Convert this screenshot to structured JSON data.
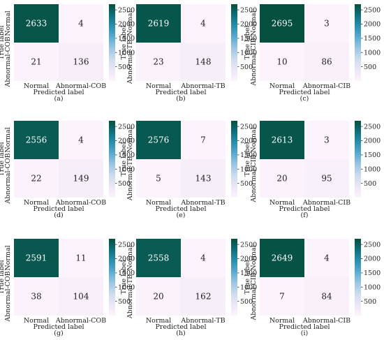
{
  "palette": {
    "dark": "#054f3e",
    "light": "#fcf3fc",
    "colorbar_stops": [
      "#fcf3fc",
      "#ede6f5",
      "#cddcef",
      "#9cc6e2",
      "#5ba9d2",
      "#2a8fae",
      "#0f6f7a",
      "#054f3e"
    ]
  },
  "colorbar": {
    "min": 0,
    "max": 2700,
    "ticks": [
      500,
      1000,
      1500,
      2000,
      2500
    ]
  },
  "chart_data": [
    {
      "type": "heatmap",
      "panel_label": "(a)",
      "xlabel": "Predicted label",
      "ylabel": "True label",
      "x_categories": [
        "Normal",
        "Abnormal-COB"
      ],
      "y_categories": [
        "Normal",
        "Abnormal-COB"
      ],
      "values": [
        [
          2633,
          4
        ],
        [
          21,
          136
        ]
      ]
    },
    {
      "type": "heatmap",
      "panel_label": "(b)",
      "xlabel": "Predicted label",
      "ylabel": "True label",
      "x_categories": [
        "Normal",
        "Abnormal-TB"
      ],
      "y_categories": [
        "Normal",
        "Abnormal-TB"
      ],
      "values": [
        [
          2619,
          4
        ],
        [
          23,
          148
        ]
      ]
    },
    {
      "type": "heatmap",
      "panel_label": "(c)",
      "xlabel": "Predicted label",
      "ylabel": "True label",
      "x_categories": [
        "Normal",
        "Abnormal-CIB"
      ],
      "y_categories": [
        "Normal",
        "Abnormal-CIB"
      ],
      "values": [
        [
          2695,
          3
        ],
        [
          10,
          86
        ]
      ]
    },
    {
      "type": "heatmap",
      "panel_label": "(d)",
      "xlabel": "Predicted label",
      "ylabel": "True label",
      "x_categories": [
        "Normal",
        "Abnormal-COB"
      ],
      "y_categories": [
        "Normal",
        "Abnormal-COB"
      ],
      "values": [
        [
          2556,
          4
        ],
        [
          22,
          149
        ]
      ]
    },
    {
      "type": "heatmap",
      "panel_label": "(e)",
      "xlabel": "Predicted label",
      "ylabel": "True label",
      "x_categories": [
        "Normal",
        "Abnormal-TB"
      ],
      "y_categories": [
        "Normal",
        "Abnormal-TB"
      ],
      "values": [
        [
          2576,
          7
        ],
        [
          5,
          143
        ]
      ]
    },
    {
      "type": "heatmap",
      "panel_label": "(f)",
      "xlabel": "Predicted label",
      "ylabel": "True label",
      "x_categories": [
        "Normal",
        "Abnormal-CIB"
      ],
      "y_categories": [
        "Normal",
        "Abnormal-CIB"
      ],
      "values": [
        [
          2613,
          3
        ],
        [
          20,
          95
        ]
      ]
    },
    {
      "type": "heatmap",
      "panel_label": "(g)",
      "xlabel": "Predicted label",
      "ylabel": "True label",
      "x_categories": [
        "Normal",
        "Abnormal-COB"
      ],
      "y_categories": [
        "Normal",
        "Abnormal-COB"
      ],
      "values": [
        [
          2591,
          11
        ],
        [
          38,
          104
        ]
      ]
    },
    {
      "type": "heatmap",
      "panel_label": "(h)",
      "xlabel": "Predicted label",
      "ylabel": "True label",
      "x_categories": [
        "Normal",
        "Abnormal-TB"
      ],
      "y_categories": [
        "Normal",
        "Abnormal-TB"
      ],
      "values": [
        [
          2558,
          4
        ],
        [
          20,
          162
        ]
      ]
    },
    {
      "type": "heatmap",
      "panel_label": "(i)",
      "xlabel": "Predicted label",
      "ylabel": "True label",
      "x_categories": [
        "Normal",
        "Abnormal-CIB"
      ],
      "y_categories": [
        "Normal",
        "Abnormal-CIB"
      ],
      "values": [
        [
          2649,
          4
        ],
        [
          7,
          84
        ]
      ]
    }
  ]
}
